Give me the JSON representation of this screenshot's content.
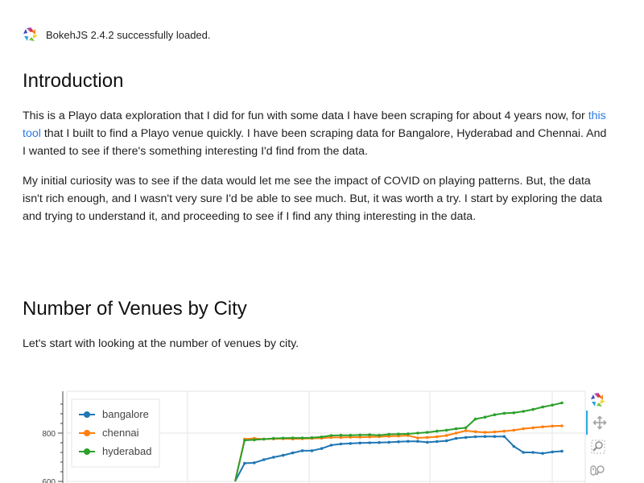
{
  "notice": {
    "text": "BokehJS 2.4.2 successfully loaded."
  },
  "sections": {
    "intro": {
      "heading": "Introduction",
      "p1_before": "This is a Playo data exploration that I did for fun with some data I have been scraping for about 4 years now, for ",
      "p1_link": "this tool",
      "p1_after": " that I built to find a Playo venue quickly. I have been scraping data for Bangalore, Hyderabad and Chennai. And I wanted to see if there's something interesting I'd find from the data.",
      "p2": "My initial curiosity was to see if the data would let me see the impact of COVID on playing patterns. But, the data isn't rich enough, and I wasn't very sure I'd be able to see much. But, it was worth a try. I start by exploring the data and trying to understand it, and proceeding to see if I find any thing interesting in the data."
    },
    "venues": {
      "heading": "Number of Venues by City",
      "p": "Let's start with looking at the number of venues by city."
    }
  },
  "toolbar": {
    "icons": [
      "bokeh-logo-icon",
      "pan-icon",
      "box-zoom-icon",
      "wheel-zoom-icon"
    ]
  },
  "colors": {
    "bangalore": "#1f77b4",
    "chennai": "#ff7f0e",
    "hyderabad": "#2ca02c",
    "link": "#2a7ae2"
  },
  "chart_data": {
    "type": "line",
    "title": "",
    "xlabel": "",
    "ylabel": "",
    "yticks": [
      600,
      800
    ],
    "ylim": [
      600,
      930
    ],
    "legend_position": "top-left",
    "grid": true,
    "series": [
      {
        "name": "bangalore",
        "values": [
          600,
          675,
          677,
          690,
          700,
          708,
          718,
          727,
          727,
          736,
          750,
          755,
          757,
          759,
          760,
          761,
          762,
          764,
          766,
          766,
          762,
          765,
          768,
          778,
          782,
          785,
          786,
          786,
          786,
          745,
          720,
          720,
          716,
          722,
          725
        ]
      },
      {
        "name": "chennai",
        "values": [
          600,
          775,
          778,
          775,
          776,
          777,
          776,
          777,
          778,
          779,
          782,
          782,
          783,
          783,
          784,
          785,
          787,
          788,
          790,
          780,
          782,
          785,
          790,
          800,
          810,
          806,
          803,
          805,
          808,
          812,
          818,
          822,
          826,
          829,
          830
        ]
      },
      {
        "name": "hyderabad",
        "values": [
          600,
          770,
          772,
          775,
          778,
          779,
          780,
          780,
          781,
          784,
          790,
          791,
          791,
          792,
          793,
          791,
          795,
          796,
          797,
          800,
          803,
          808,
          812,
          818,
          822,
          858,
          866,
          876,
          882,
          884,
          890,
          898,
          908,
          916,
          925
        ]
      }
    ]
  }
}
